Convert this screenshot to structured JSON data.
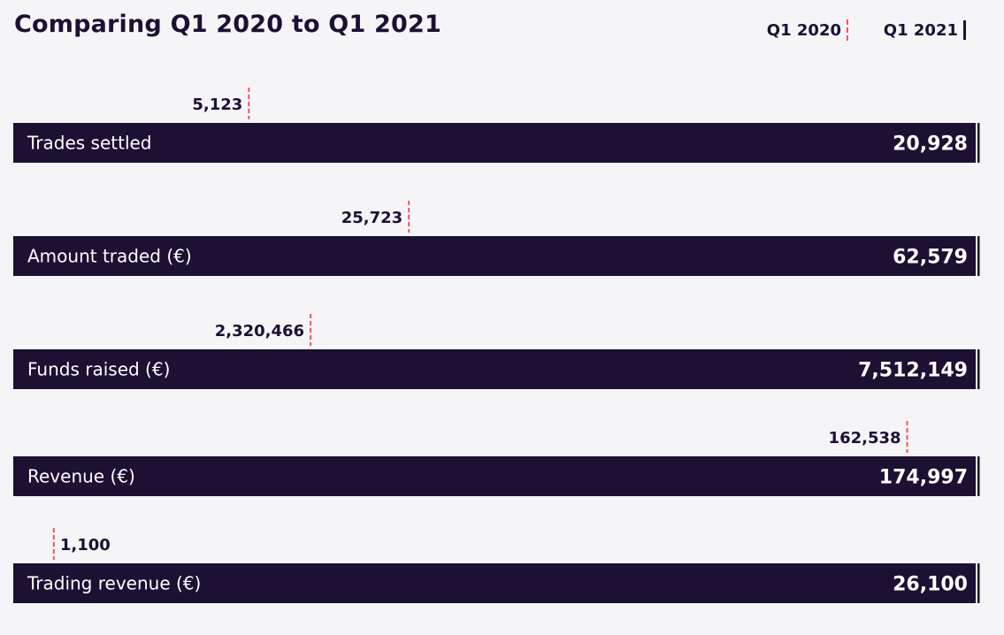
{
  "colors": {
    "background": "#f5f5f8",
    "bar": "#1c1033",
    "q1_2020_marker": "#ff4d5e",
    "q1_2021_marker": "#1c1033"
  },
  "chart_data": {
    "type": "bar",
    "title": "Comparing Q1 2020 to Q1 2021",
    "legend": [
      {
        "name": "Q1 2020",
        "style": "dashed red marker"
      },
      {
        "name": "Q1 2021",
        "style": "solid dark marker"
      }
    ],
    "legend_placement": "top-right",
    "categories": [
      "Trades settled",
      "Amount traded (€)",
      "Funds raised (€)",
      "Revenue (€)",
      "Trading revenue (€)"
    ],
    "series": [
      {
        "name": "Q1 2020",
        "values": [
          5123,
          25723,
          2320466,
          162538,
          1100
        ],
        "labels": [
          "5,123",
          "25,723",
          "2,320,466",
          "162,538",
          "1,100"
        ]
      },
      {
        "name": "Q1 2021",
        "values": [
          20928,
          62579,
          7512149,
          174997,
          26100
        ],
        "labels": [
          "20,928",
          "62,579",
          "7,512,149",
          "174,997",
          "26,100"
        ]
      }
    ],
    "scale": "each row normalized to its Q1 2021 value (bar spans full width)"
  }
}
